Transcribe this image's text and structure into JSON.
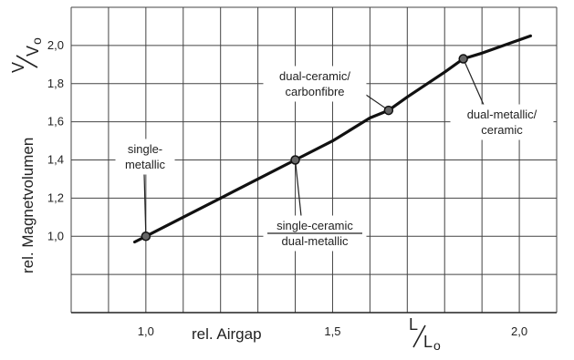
{
  "chart_data": {
    "type": "line",
    "title": "",
    "xlabel": "rel. Airgap",
    "ylabel": "rel. Magnetvolumen",
    "xlim": [
      0.8,
      2.1
    ],
    "ylim": [
      0.6,
      2.2
    ],
    "grid": true,
    "x_unit_label": {
      "num": "L",
      "den": "L",
      "den_sub": "o"
    },
    "y_unit_label": {
      "num": "V",
      "den": "V",
      "den_sub": "o"
    },
    "x_ticks": [
      {
        "value": 1.0,
        "label": "1,0"
      },
      {
        "value": 1.5,
        "label": "1,5"
      },
      {
        "value": 2.0,
        "label": "2,0"
      }
    ],
    "y_ticks": [
      {
        "value": 1.0,
        "label": "1,0"
      },
      {
        "value": 1.2,
        "label": "1,2"
      },
      {
        "value": 1.4,
        "label": "1,4"
      },
      {
        "value": 1.6,
        "label": "1,6"
      },
      {
        "value": 1.8,
        "label": "1,8"
      },
      {
        "value": 2.0,
        "label": "2,0"
      }
    ],
    "series": [
      {
        "x": [
          0.97,
          1.0,
          1.1,
          1.2,
          1.3,
          1.4,
          1.5,
          1.6,
          1.65,
          1.7,
          1.8,
          1.85,
          1.9,
          2.03
        ],
        "y": [
          0.97,
          1.0,
          1.1,
          1.2,
          1.3,
          1.4,
          1.5,
          1.62,
          1.66,
          1.73,
          1.86,
          1.93,
          1.96,
          2.05
        ]
      }
    ],
    "points": [
      {
        "x": 1.0,
        "y": 1.0,
        "label_lines": [
          "single-",
          "metallic"
        ]
      },
      {
        "x": 1.4,
        "y": 1.4,
        "label_lines": [
          "single-ceramic",
          "dual-metallic"
        ]
      },
      {
        "x": 1.65,
        "y": 1.66,
        "label_lines": [
          "dual-ceramic/",
          "carbonfibre"
        ]
      },
      {
        "x": 1.85,
        "y": 1.93,
        "label_lines": [
          "dual-metallic/",
          "ceramic"
        ]
      }
    ]
  }
}
